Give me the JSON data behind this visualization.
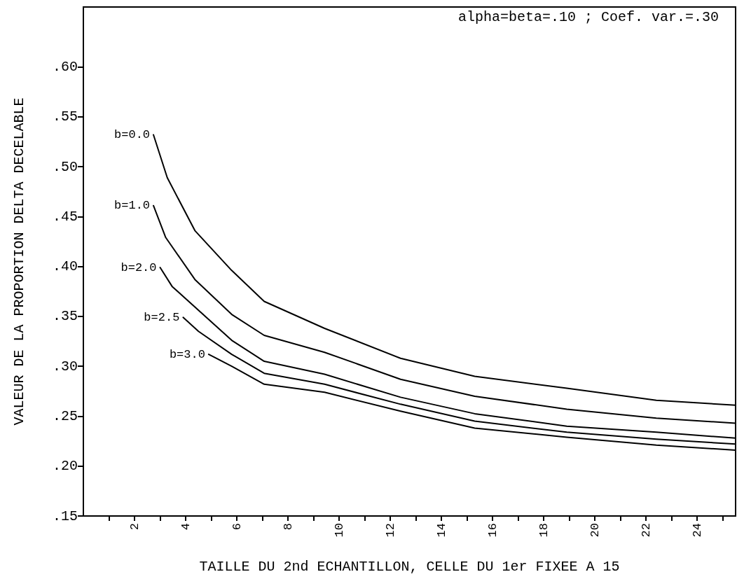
{
  "chart_data": {
    "type": "line",
    "xlabel": "TAILLE DU 2nd ECHANTILLON, CELLE DU 1er FIXEE A 15",
    "ylabel": "VALEUR DE LA PROPORTION DELTA DECELABLE",
    "annotations": [
      "alpha=beta=.10 ; Coef. var.=.30"
    ],
    "xlim": [
      0,
      25.5
    ],
    "xticks": [
      {
        "value": 1,
        "label": null
      },
      2,
      {
        "value": 3,
        "label": null
      },
      4,
      {
        "value": 5,
        "label": null
      },
      6,
      {
        "value": 7,
        "label": null
      },
      8,
      {
        "value": 9,
        "label": null
      },
      10,
      {
        "value": 11,
        "label": null
      },
      12,
      {
        "value": 13,
        "label": null
      },
      14,
      {
        "value": 15,
        "label": null
      },
      16,
      {
        "value": 17,
        "label": null
      },
      18,
      {
        "value": 19,
        "label": null
      },
      20,
      {
        "value": 21,
        "label": null
      },
      22,
      {
        "value": 23,
        "label": null
      },
      24,
      {
        "value": 25,
        "label": null
      }
    ],
    "ylim": [
      0.15,
      0.66
    ],
    "yticks": [
      {
        "value": 0.15,
        "label": ".15"
      },
      {
        "value": 0.2,
        "label": ".20"
      },
      {
        "value": 0.25,
        "label": ".25"
      },
      {
        "value": 0.3,
        "label": ".30"
      },
      {
        "value": 0.35,
        "label": ".35"
      },
      {
        "value": 0.4,
        "label": ".40"
      },
      {
        "value": 0.45,
        "label": ".45"
      },
      {
        "value": 0.5,
        "label": ".50"
      },
      {
        "value": 0.55,
        "label": ".55"
      },
      {
        "value": 0.6,
        "label": ".60"
      }
    ],
    "grid": false,
    "legend": false,
    "marker": "none",
    "line_style": "solid",
    "series": [
      {
        "name": "b=0.0",
        "color": "#000000",
        "x": [
          2.74,
          3.28,
          4.36,
          5.8,
          7.07,
          9.43,
          12.4,
          15.3,
          18.9,
          22.4,
          25.5
        ],
        "values": [
          0.532,
          0.489,
          0.436,
          0.396,
          0.365,
          0.338,
          0.308,
          0.29,
          0.278,
          0.266,
          0.261
        ]
      },
      {
        "name": "b=1.0",
        "color": "#000000",
        "x": [
          2.74,
          3.22,
          4.36,
          5.8,
          7.07,
          9.43,
          12.4,
          15.3,
          18.9,
          22.4,
          25.5
        ],
        "values": [
          0.461,
          0.429,
          0.387,
          0.352,
          0.331,
          0.314,
          0.287,
          0.27,
          0.257,
          0.248,
          0.243
        ]
      },
      {
        "name": "b=2.0",
        "color": "#000000",
        "x": [
          3.0,
          3.47,
          5.8,
          7.07,
          9.43,
          12.4,
          15.3,
          18.9,
          22.4,
          25.5
        ],
        "values": [
          0.399,
          0.38,
          0.326,
          0.305,
          0.292,
          0.269,
          0.2525,
          0.24,
          0.234,
          0.228
        ]
      },
      {
        "name": "b=2.5",
        "color": "#000000",
        "x": [
          3.9,
          4.5,
          5.8,
          7.07,
          9.43,
          12.4,
          15.3,
          18.9,
          22.4,
          25.5
        ],
        "values": [
          0.349,
          0.335,
          0.312,
          0.293,
          0.282,
          0.262,
          0.245,
          0.234,
          0.227,
          0.222
        ]
      },
      {
        "name": "b=3.0",
        "color": "#000000",
        "x": [
          4.9,
          5.8,
          7.07,
          9.43,
          12.4,
          15.3,
          18.9,
          22.4,
          25.5
        ],
        "values": [
          0.312,
          0.3,
          0.282,
          0.274,
          0.255,
          0.238,
          0.229,
          0.221,
          0.216
        ]
      }
    ]
  }
}
